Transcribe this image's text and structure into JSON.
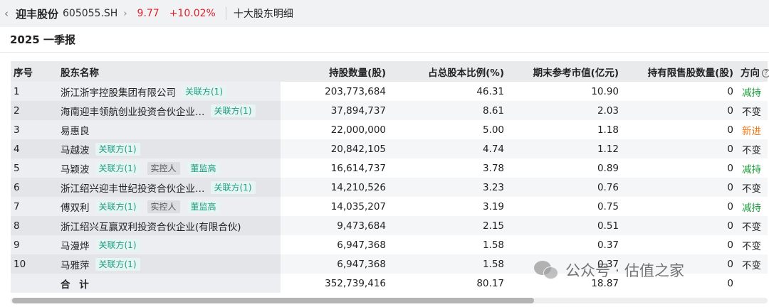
{
  "header": {
    "back_glyph": "‹",
    "stock_name": "迎丰股份",
    "stock_code": "605055.SH",
    "chevron_glyph": "›",
    "price": "9.77",
    "change_pct": "+10.02%",
    "page_title": "十大股东明细"
  },
  "section": {
    "title": "2025 一季报"
  },
  "table": {
    "columns": [
      "序号",
      "股东名称",
      "持股数量(股)",
      "占总股本比例(%)",
      "期末参考市值(亿元)",
      "持有限售股数量(股)",
      "方向"
    ],
    "rows": [
      {
        "idx": "1",
        "name": "浙江浙宇控股集团有限公司",
        "tags": [
          "关联方(1)"
        ],
        "shares": "203,773,684",
        "ratio": "46.31",
        "value": "10.90",
        "restricted": "0",
        "direction": "减持"
      },
      {
        "idx": "2",
        "name": "海南迎丰领航创业投资合伙企业…",
        "tags": [
          "关联方(1)"
        ],
        "shares": "37,894,737",
        "ratio": "8.61",
        "value": "2.03",
        "restricted": "0",
        "direction": "不变"
      },
      {
        "idx": "3",
        "name": "易惠良",
        "tags": [],
        "shares": "22,000,000",
        "ratio": "5.00",
        "value": "1.18",
        "restricted": "0",
        "direction": "新进"
      },
      {
        "idx": "4",
        "name": "马越波",
        "tags": [
          "关联方(1)"
        ],
        "shares": "20,842,105",
        "ratio": "4.74",
        "value": "1.12",
        "restricted": "0",
        "direction": "不变"
      },
      {
        "idx": "5",
        "name": "马颖波",
        "tags": [
          "关联方(1)",
          "实控人",
          "董监高"
        ],
        "shares": "16,614,737",
        "ratio": "3.78",
        "value": "0.89",
        "restricted": "0",
        "direction": "减持"
      },
      {
        "idx": "6",
        "name": "浙江绍兴迎丰世纪投资合伙企业…",
        "tags": [
          "关联方(1)"
        ],
        "shares": "14,210,526",
        "ratio": "3.23",
        "value": "0.76",
        "restricted": "0",
        "direction": "不变"
      },
      {
        "idx": "7",
        "name": "傅双利",
        "tags": [
          "关联方(1)",
          "实控人",
          "董监高"
        ],
        "shares": "14,035,207",
        "ratio": "3.19",
        "value": "0.75",
        "restricted": "0",
        "direction": "减持"
      },
      {
        "idx": "8",
        "name": "浙江绍兴互赢双利投资合伙企业(有限合伙)",
        "tags": [],
        "shares": "9,473,684",
        "ratio": "2.15",
        "value": "0.51",
        "restricted": "0",
        "direction": "不变"
      },
      {
        "idx": "9",
        "name": "马漫烨",
        "tags": [
          "关联方(1)"
        ],
        "shares": "6,947,368",
        "ratio": "1.58",
        "value": "0.37",
        "restricted": "0",
        "direction": "不变"
      },
      {
        "idx": "10",
        "name": "马雅萍",
        "tags": [
          "关联方(1)"
        ],
        "shares": "6,947,368",
        "ratio": "1.58",
        "value": "0.37",
        "restricted": "0",
        "direction": "不变"
      }
    ],
    "total": {
      "label": "合 计",
      "shares": "352,739,416",
      "ratio": "80.17",
      "value": "18.87",
      "restricted": "0"
    }
  },
  "scrollbar": {
    "thumb_fraction": 0.69
  },
  "watermark": {
    "text": "公众号 · 估值之家"
  },
  "colors": {
    "up": "#e0222c",
    "reduce": "#1a9c3a",
    "new": "#f07a18",
    "tag_text": "#1f9a84"
  }
}
